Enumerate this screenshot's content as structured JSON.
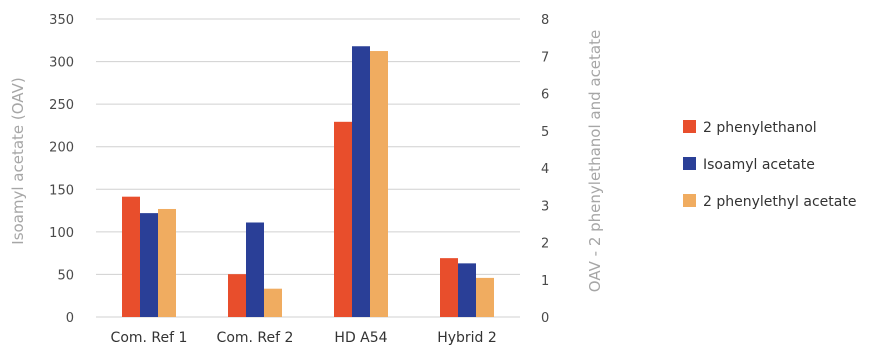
{
  "chart_data": {
    "type": "bar",
    "categories": [
      "Com. Ref 1",
      "Com. Ref 2",
      "HD A54",
      "Hybrid 2"
    ],
    "series": [
      {
        "name": "2 phenylethanol",
        "axis": "right",
        "color": "#e84e2c",
        "values": [
          3.23,
          1.15,
          5.24,
          1.58
        ]
      },
      {
        "name": "Isoamyl acetate",
        "axis": "left",
        "color": "#2a3f97",
        "values": [
          122,
          111,
          318,
          63
        ]
      },
      {
        "name": "2 phenylethyl acetate",
        "axis": "right",
        "color": "#f0ac60",
        "values": [
          2.9,
          0.76,
          7.14,
          1.05
        ]
      }
    ],
    "ylabel_left": "Isoamyl acetate (OAV)",
    "ylabel_right": "OAV - 2 phenylethanol and acetate",
    "ylim_left": [
      0,
      350
    ],
    "ylim_right": [
      0,
      8
    ],
    "yticks_left": [
      0,
      50,
      100,
      150,
      200,
      250,
      300,
      350
    ],
    "yticks_right": [
      0,
      1,
      2,
      3,
      4,
      5,
      6,
      7,
      8
    ],
    "grid": true,
    "legend_position": "right"
  }
}
